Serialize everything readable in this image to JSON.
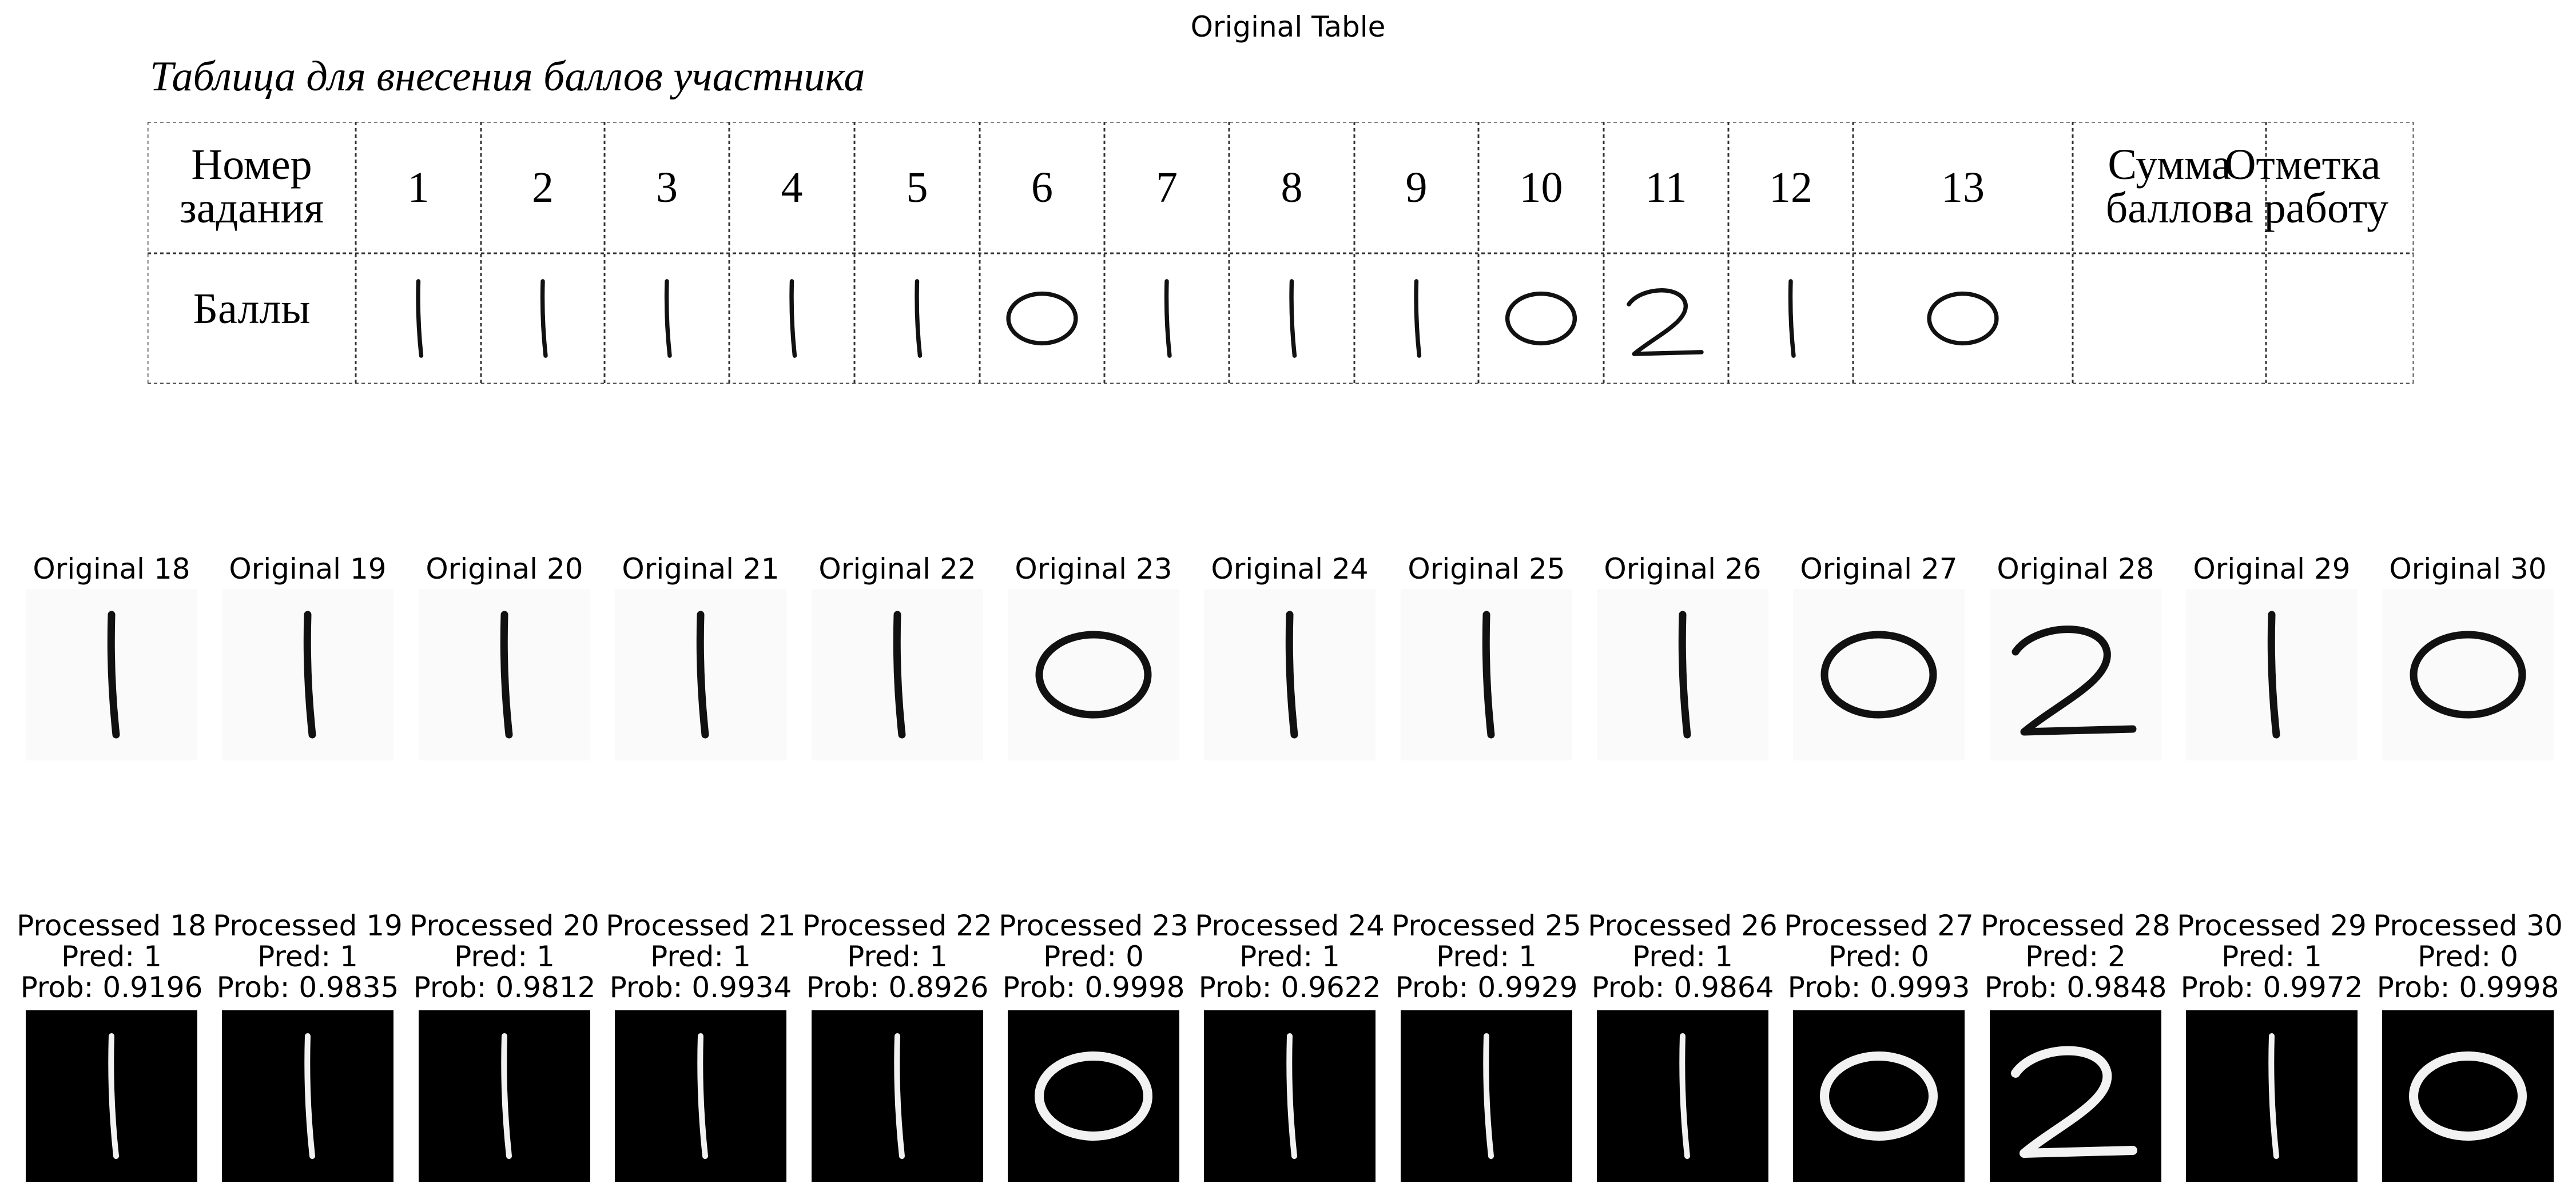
{
  "figure_title": "Original Table",
  "table": {
    "title": "Таблица для внесения баллов участника",
    "row1_label_lines": [
      "Номер",
      "задания"
    ],
    "row2_label": "Баллы",
    "task_numbers": [
      "1",
      "2",
      "3",
      "4",
      "5",
      "6",
      "7",
      "8",
      "9",
      "10",
      "11",
      "12",
      "13"
    ],
    "sum_label_lines": [
      "Сумма",
      "баллов"
    ],
    "mark_label_lines": [
      "Отметка",
      "за работу"
    ],
    "handwritten_scores": [
      "1",
      "1",
      "1",
      "1",
      "1",
      "0",
      "1",
      "1",
      "1",
      "0",
      "2",
      "1",
      "0"
    ]
  },
  "originals": [
    {
      "label": "Original 18",
      "digit": "1"
    },
    {
      "label": "Original 19",
      "digit": "1"
    },
    {
      "label": "Original 20",
      "digit": "1"
    },
    {
      "label": "Original 21",
      "digit": "1"
    },
    {
      "label": "Original 22",
      "digit": "1"
    },
    {
      "label": "Original 23",
      "digit": "0"
    },
    {
      "label": "Original 24",
      "digit": "1"
    },
    {
      "label": "Original 25",
      "digit": "1"
    },
    {
      "label": "Original 26",
      "digit": "1"
    },
    {
      "label": "Original 27",
      "digit": "0"
    },
    {
      "label": "Original 28",
      "digit": "2"
    },
    {
      "label": "Original 29",
      "digit": "1"
    },
    {
      "label": "Original 30",
      "digit": "0"
    }
  ],
  "processed": [
    {
      "label": "Processed 18",
      "pred": "Pred: 1",
      "prob": "Prob: 0.9196"
    },
    {
      "label": "Processed 19",
      "pred": "Pred: 1",
      "prob": "Prob: 0.9835"
    },
    {
      "label": "Processed 20",
      "pred": "Pred: 1",
      "prob": "Prob: 0.9812"
    },
    {
      "label": "Processed 21",
      "pred": "Pred: 1",
      "prob": "Prob: 0.9934"
    },
    {
      "label": "Processed 22",
      "pred": "Pred: 1",
      "prob": "Prob: 0.8926"
    },
    {
      "label": "Processed 23",
      "pred": "Pred: 0",
      "prob": "Prob: 0.9998"
    },
    {
      "label": "Processed 24",
      "pred": "Pred: 1",
      "prob": "Prob: 0.9622"
    },
    {
      "label": "Processed 25",
      "pred": "Pred: 1",
      "prob": "Prob: 0.9929"
    },
    {
      "label": "Processed 26",
      "pred": "Pred: 1",
      "prob": "Prob: 0.9864"
    },
    {
      "label": "Processed 27",
      "pred": "Pred: 0",
      "prob": "Prob: 0.9993"
    },
    {
      "label": "Processed 28",
      "pred": "Pred: 2",
      "prob": "Prob: 0.9848"
    },
    {
      "label": "Processed 29",
      "pred": "Pred: 1",
      "prob": "Prob: 0.9972"
    },
    {
      "label": "Processed 30",
      "pred": "Pred: 0",
      "prob": "Prob: 0.9998"
    }
  ]
}
